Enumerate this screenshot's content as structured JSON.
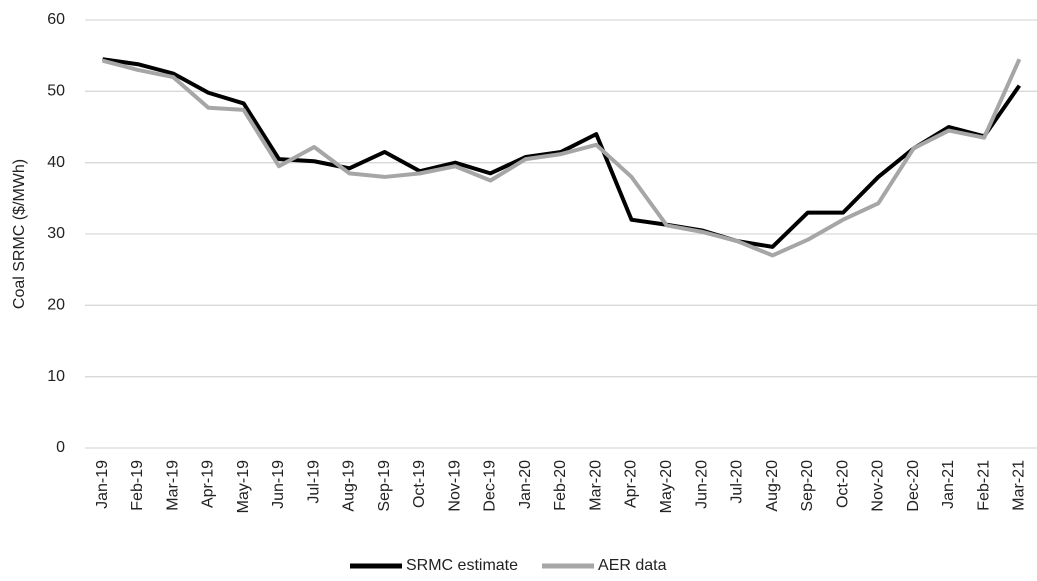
{
  "chart_data": {
    "type": "line",
    "y_label": "Coal SRMC ($/MWh)",
    "categories": [
      "Jan-19",
      "Feb-19",
      "Mar-19",
      "Apr-19",
      "May-19",
      "Jun-19",
      "Jul-19",
      "Aug-19",
      "Sep-19",
      "Oct-19",
      "Nov-19",
      "Dec-19",
      "Jan-20",
      "Feb-20",
      "Mar-20",
      "Apr-20",
      "May-20",
      "Jun-20",
      "Jul-20",
      "Aug-20",
      "Sep-20",
      "Oct-20",
      "Nov-20",
      "Dec-20",
      "Jan-21",
      "Feb-21",
      "Mar-21"
    ],
    "series": [
      {
        "name": "SRMC estimate",
        "color": "#000000",
        "values": [
          54.5,
          53.8,
          52.5,
          49.8,
          48.3,
          40.5,
          40.2,
          39.2,
          41.5,
          38.8,
          40.0,
          38.5,
          40.8,
          41.5,
          44.0,
          32.0,
          31.3,
          30.5,
          29.0,
          28.2,
          33.0,
          33.0,
          38.0,
          42.0,
          45.0,
          43.7,
          50.8
        ]
      },
      {
        "name": "AER data",
        "color": "#a6a6a6",
        "values": [
          54.3,
          53.0,
          52.0,
          47.7,
          47.4,
          39.5,
          42.2,
          38.5,
          38.0,
          38.5,
          39.5,
          37.5,
          40.5,
          41.2,
          42.5,
          38.0,
          31.2,
          30.3,
          29.0,
          27.0,
          29.2,
          32.0,
          34.3,
          42.0,
          44.5,
          43.5,
          54.5
        ]
      }
    ],
    "ylim": [
      0,
      60
    ],
    "yticks": [
      0,
      10,
      20,
      30,
      40,
      50,
      60
    ],
    "grid": true,
    "legend": "bottom"
  }
}
